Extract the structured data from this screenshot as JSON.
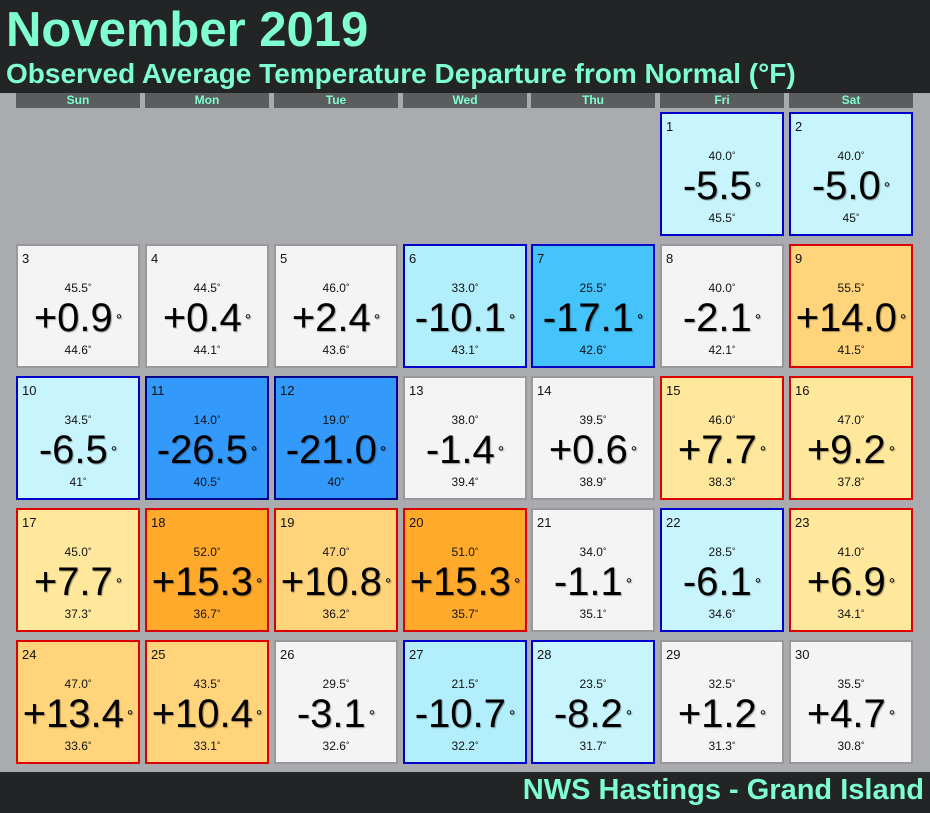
{
  "header": {
    "title": "November 2019",
    "subtitle": "Observed Average Temperature Departure from Normal (°F)"
  },
  "weekdays": [
    "Sun",
    "Mon",
    "Tue",
    "Wed",
    "Thu",
    "Fri",
    "Sat"
  ],
  "degree": "°",
  "days": [
    {
      "day": "1",
      "observed": "40.0",
      "departure": "-5.5",
      "normal": "45.5",
      "fill": "#c8f5fd",
      "border": "#0000cc"
    },
    {
      "day": "2",
      "observed": "40.0",
      "departure": "-5.0",
      "normal": "45",
      "fill": "#c8f5fd",
      "border": "#0000cc"
    },
    {
      "day": "3",
      "observed": "45.5",
      "departure": "+0.9",
      "normal": "44.6",
      "fill": "#f4f4f4",
      "border": "#999999"
    },
    {
      "day": "4",
      "observed": "44.5",
      "departure": "+0.4",
      "normal": "44.1",
      "fill": "#f4f4f4",
      "border": "#999999"
    },
    {
      "day": "5",
      "observed": "46.0",
      "departure": "+2.4",
      "normal": "43.6",
      "fill": "#f4f4f4",
      "border": "#999999"
    },
    {
      "day": "6",
      "observed": "33.0",
      "departure": "-10.1",
      "normal": "43.1",
      "fill": "#b2eefc",
      "border": "#0000cc"
    },
    {
      "day": "7",
      "observed": "25.5",
      "departure": "-17.1",
      "normal": "42.6",
      "fill": "#45c3fb",
      "border": "#0000cc"
    },
    {
      "day": "8",
      "observed": "40.0",
      "departure": "-2.1",
      "normal": "42.1",
      "fill": "#f4f4f4",
      "border": "#999999"
    },
    {
      "day": "9",
      "observed": "55.5",
      "departure": "+14.0",
      "normal": "41.5",
      "fill": "#ffd47b",
      "border": "#dd0000"
    },
    {
      "day": "10",
      "observed": "34.5",
      "departure": "-6.5",
      "normal": "41",
      "fill": "#c8f5fd",
      "border": "#0000cc"
    },
    {
      "day": "11",
      "observed": "14.0",
      "departure": "-26.5",
      "normal": "40.5",
      "fill": "#3399fb",
      "border": "#00008b"
    },
    {
      "day": "12",
      "observed": "19.0",
      "departure": "-21.0",
      "normal": "40",
      "fill": "#3399fb",
      "border": "#00008b"
    },
    {
      "day": "13",
      "observed": "38.0",
      "departure": "-1.4",
      "normal": "39.4",
      "fill": "#f4f4f4",
      "border": "#999999"
    },
    {
      "day": "14",
      "observed": "39.5",
      "departure": "+0.6",
      "normal": "38.9",
      "fill": "#f4f4f4",
      "border": "#999999"
    },
    {
      "day": "15",
      "observed": "46.0",
      "departure": "+7.7",
      "normal": "38.3",
      "fill": "#ffe89c",
      "border": "#dd0000"
    },
    {
      "day": "16",
      "observed": "47.0",
      "departure": "+9.2",
      "normal": "37.8",
      "fill": "#ffe89c",
      "border": "#dd0000"
    },
    {
      "day": "17",
      "observed": "45.0",
      "departure": "+7.7",
      "normal": "37.3",
      "fill": "#ffe89c",
      "border": "#dd0000"
    },
    {
      "day": "18",
      "observed": "52.0",
      "departure": "+15.3",
      "normal": "36.7",
      "fill": "#ffaa2b",
      "border": "#dd0000"
    },
    {
      "day": "19",
      "observed": "47.0",
      "departure": "+10.8",
      "normal": "36.2",
      "fill": "#ffd47b",
      "border": "#dd0000"
    },
    {
      "day": "20",
      "observed": "51.0",
      "departure": "+15.3",
      "normal": "35.7",
      "fill": "#ffaa2b",
      "border": "#dd0000"
    },
    {
      "day": "21",
      "observed": "34.0",
      "departure": "-1.1",
      "normal": "35.1",
      "fill": "#f4f4f4",
      "border": "#999999"
    },
    {
      "day": "22",
      "observed": "28.5",
      "departure": "-6.1",
      "normal": "34.6",
      "fill": "#c8f5fd",
      "border": "#0000cc"
    },
    {
      "day": "23",
      "observed": "41.0",
      "departure": "+6.9",
      "normal": "34.1",
      "fill": "#ffe89c",
      "border": "#dd0000"
    },
    {
      "day": "24",
      "observed": "47.0",
      "departure": "+13.4",
      "normal": "33.6",
      "fill": "#ffd47b",
      "border": "#dd0000"
    },
    {
      "day": "25",
      "observed": "43.5",
      "departure": "+10.4",
      "normal": "33.1",
      "fill": "#ffd47b",
      "border": "#dd0000"
    },
    {
      "day": "26",
      "observed": "29.5",
      "departure": "-3.1",
      "normal": "32.6",
      "fill": "#f4f4f4",
      "border": "#999999"
    },
    {
      "day": "27",
      "observed": "21.5",
      "departure": "-10.7",
      "normal": "32.2",
      "fill": "#b2eefc",
      "border": "#0000cc"
    },
    {
      "day": "28",
      "observed": "23.5",
      "departure": "-8.2",
      "normal": "31.7",
      "fill": "#c8f5fd",
      "border": "#0000cc"
    },
    {
      "day": "29",
      "observed": "32.5",
      "departure": "+1.2",
      "normal": "31.3",
      "fill": "#f4f4f4",
      "border": "#999999"
    },
    {
      "day": "30",
      "observed": "35.5",
      "departure": "+4.7",
      "normal": "30.8",
      "fill": "#f4f4f4",
      "border": "#999999"
    }
  ],
  "footer": "NWS Hastings - Grand Island"
}
